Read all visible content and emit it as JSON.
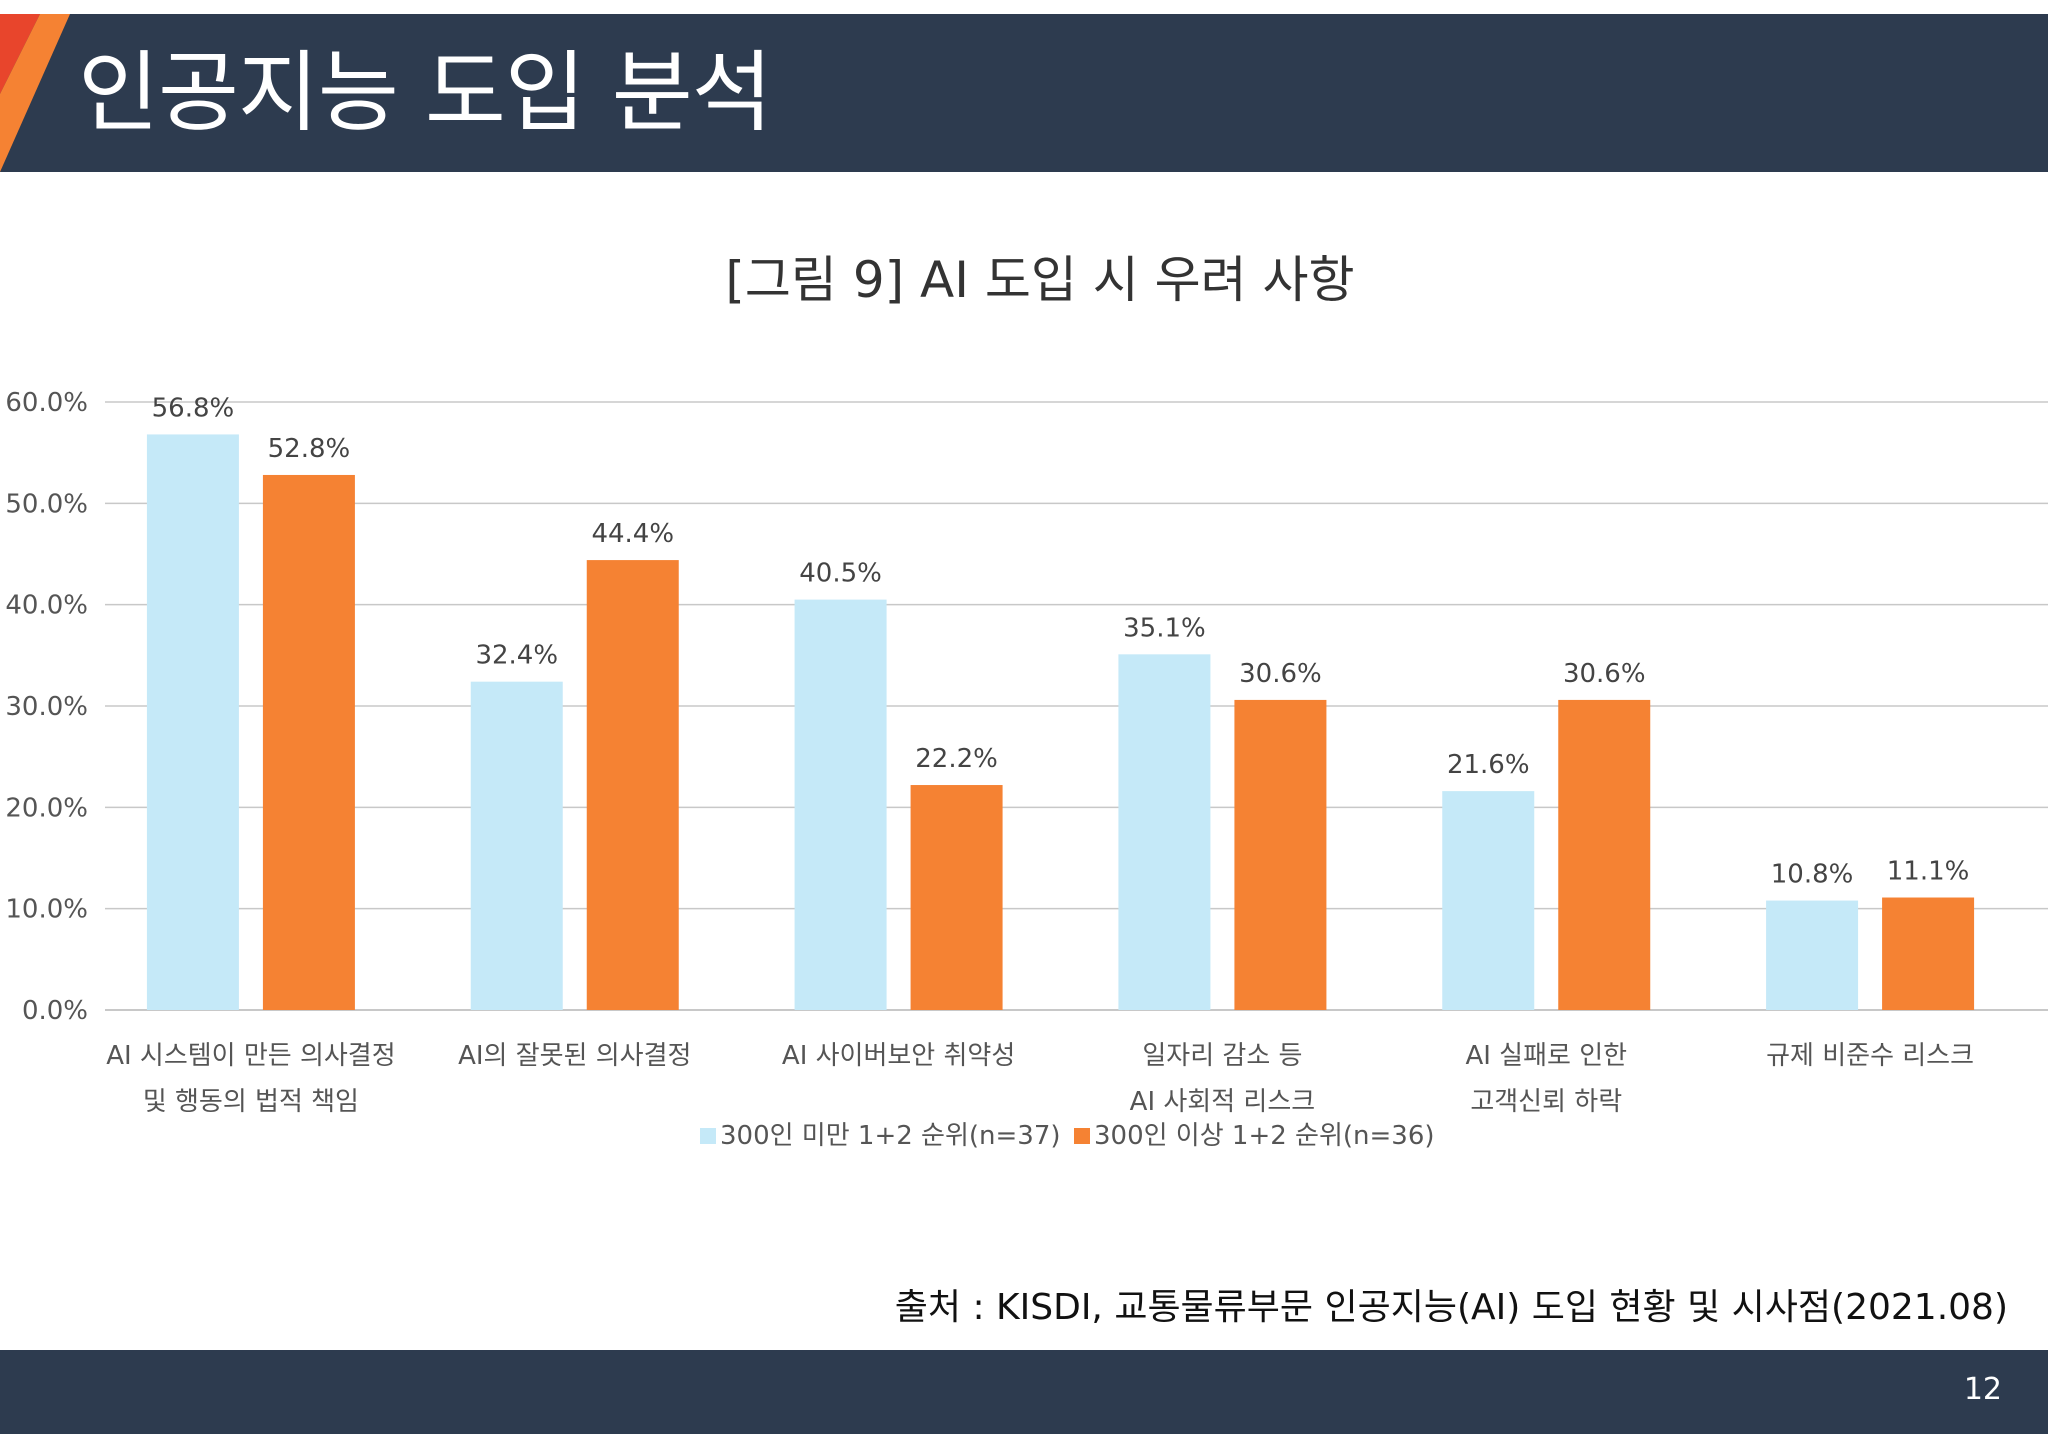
{
  "slide": {
    "title": "인공지능 도입 분석",
    "source": "출처 : KISDI, 교통물류부문 인공지능(AI) 도입 현황 및 시사점(2021.08)",
    "page_number": "12"
  },
  "colors": {
    "band": "#2d3b4f",
    "accent_orange": "#f58233",
    "accent_red": "#e8452c",
    "series1": "#c5e9f8",
    "series2": "#f58233",
    "grid": "#c8c8c8",
    "text": "#555555"
  },
  "chart_data": {
    "type": "bar",
    "title": "[그림 9] AI 도입 시 우려 사항",
    "categories": [
      [
        "AI 시스템이 만든 의사결정",
        "및 행동의 법적 책임"
      ],
      [
        "AI의 잘못된 의사결정"
      ],
      [
        "AI 사이버보안 취약성"
      ],
      [
        "일자리 감소 등",
        "AI 사회적 리스크"
      ],
      [
        "AI 실패로 인한",
        "고객신뢰 하락"
      ],
      [
        "규제 비준수 리스크"
      ]
    ],
    "series": [
      {
        "name": "300인 미만 1+2 순위(n=37)",
        "values": [
          56.8,
          32.4,
          40.5,
          35.1,
          21.6,
          10.8
        ],
        "labels": [
          "56.8%",
          "32.4%",
          "40.5%",
          "35.1%",
          "21.6%",
          "10.8%"
        ],
        "color": "#c5e9f8"
      },
      {
        "name": "300인 이상 1+2 순위(n=36)",
        "values": [
          52.8,
          44.4,
          22.2,
          30.6,
          30.6,
          11.1
        ],
        "labels": [
          "52.8%",
          "44.4%",
          "22.2%",
          "30.6%",
          "30.6%",
          "11.1%"
        ],
        "color": "#f58233"
      }
    ],
    "ylim": [
      0,
      60
    ],
    "yticks": [
      "0.0%",
      "10.0%",
      "20.0%",
      "30.0%",
      "40.0%",
      "50.0%",
      "60.0%"
    ],
    "grid": true,
    "legend": "bottom-center"
  }
}
